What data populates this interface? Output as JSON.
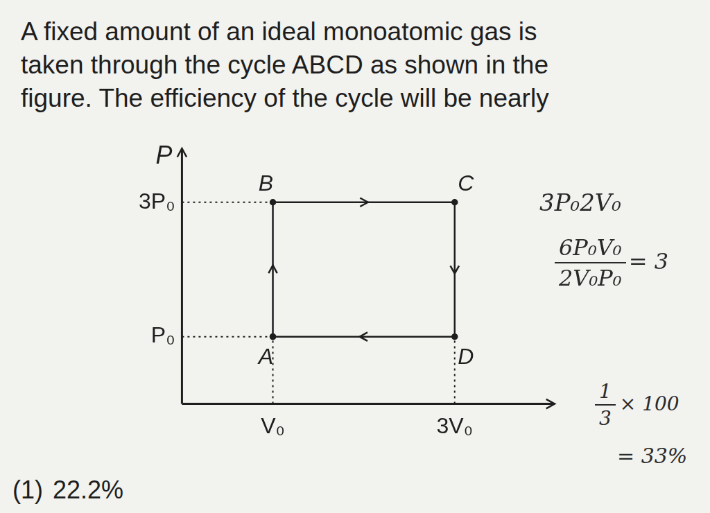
{
  "question": {
    "lines": [
      "A fixed amount of an ideal monoatomic gas is",
      "taken through the cycle ABCD as shown in the",
      "figure. The efficiency of the cycle will be nearly"
    ]
  },
  "chart_data": {
    "type": "line",
    "ylabel": "P",
    "x": [
      1,
      1,
      3,
      3
    ],
    "values": [
      1,
      3,
      3,
      1
    ],
    "point_labels": [
      "A",
      "B",
      "C",
      "D"
    ],
    "color": "#1e1e1e",
    "xlim": [
      0,
      4.1
    ],
    "ylim": [
      0,
      3.8
    ],
    "xticks": [
      {
        "value": 1,
        "label": "V₀"
      },
      {
        "value": 3,
        "label": "3V₀"
      }
    ],
    "yticks": [
      {
        "value": 1,
        "label": "P₀"
      },
      {
        "value": 3,
        "label": "3P₀"
      }
    ],
    "grid": false
  },
  "notes": {
    "product": "3P₀2V₀",
    "ratio": {
      "numerator": "6P₀V₀",
      "denominator": "2V₀P₀",
      "result": "= 3"
    },
    "percent": {
      "numerator": "1",
      "denominator": "3",
      "times": "× 100",
      "result": "= 33%"
    }
  },
  "options": [
    {
      "number": "(1)",
      "text": "22.2%"
    }
  ]
}
